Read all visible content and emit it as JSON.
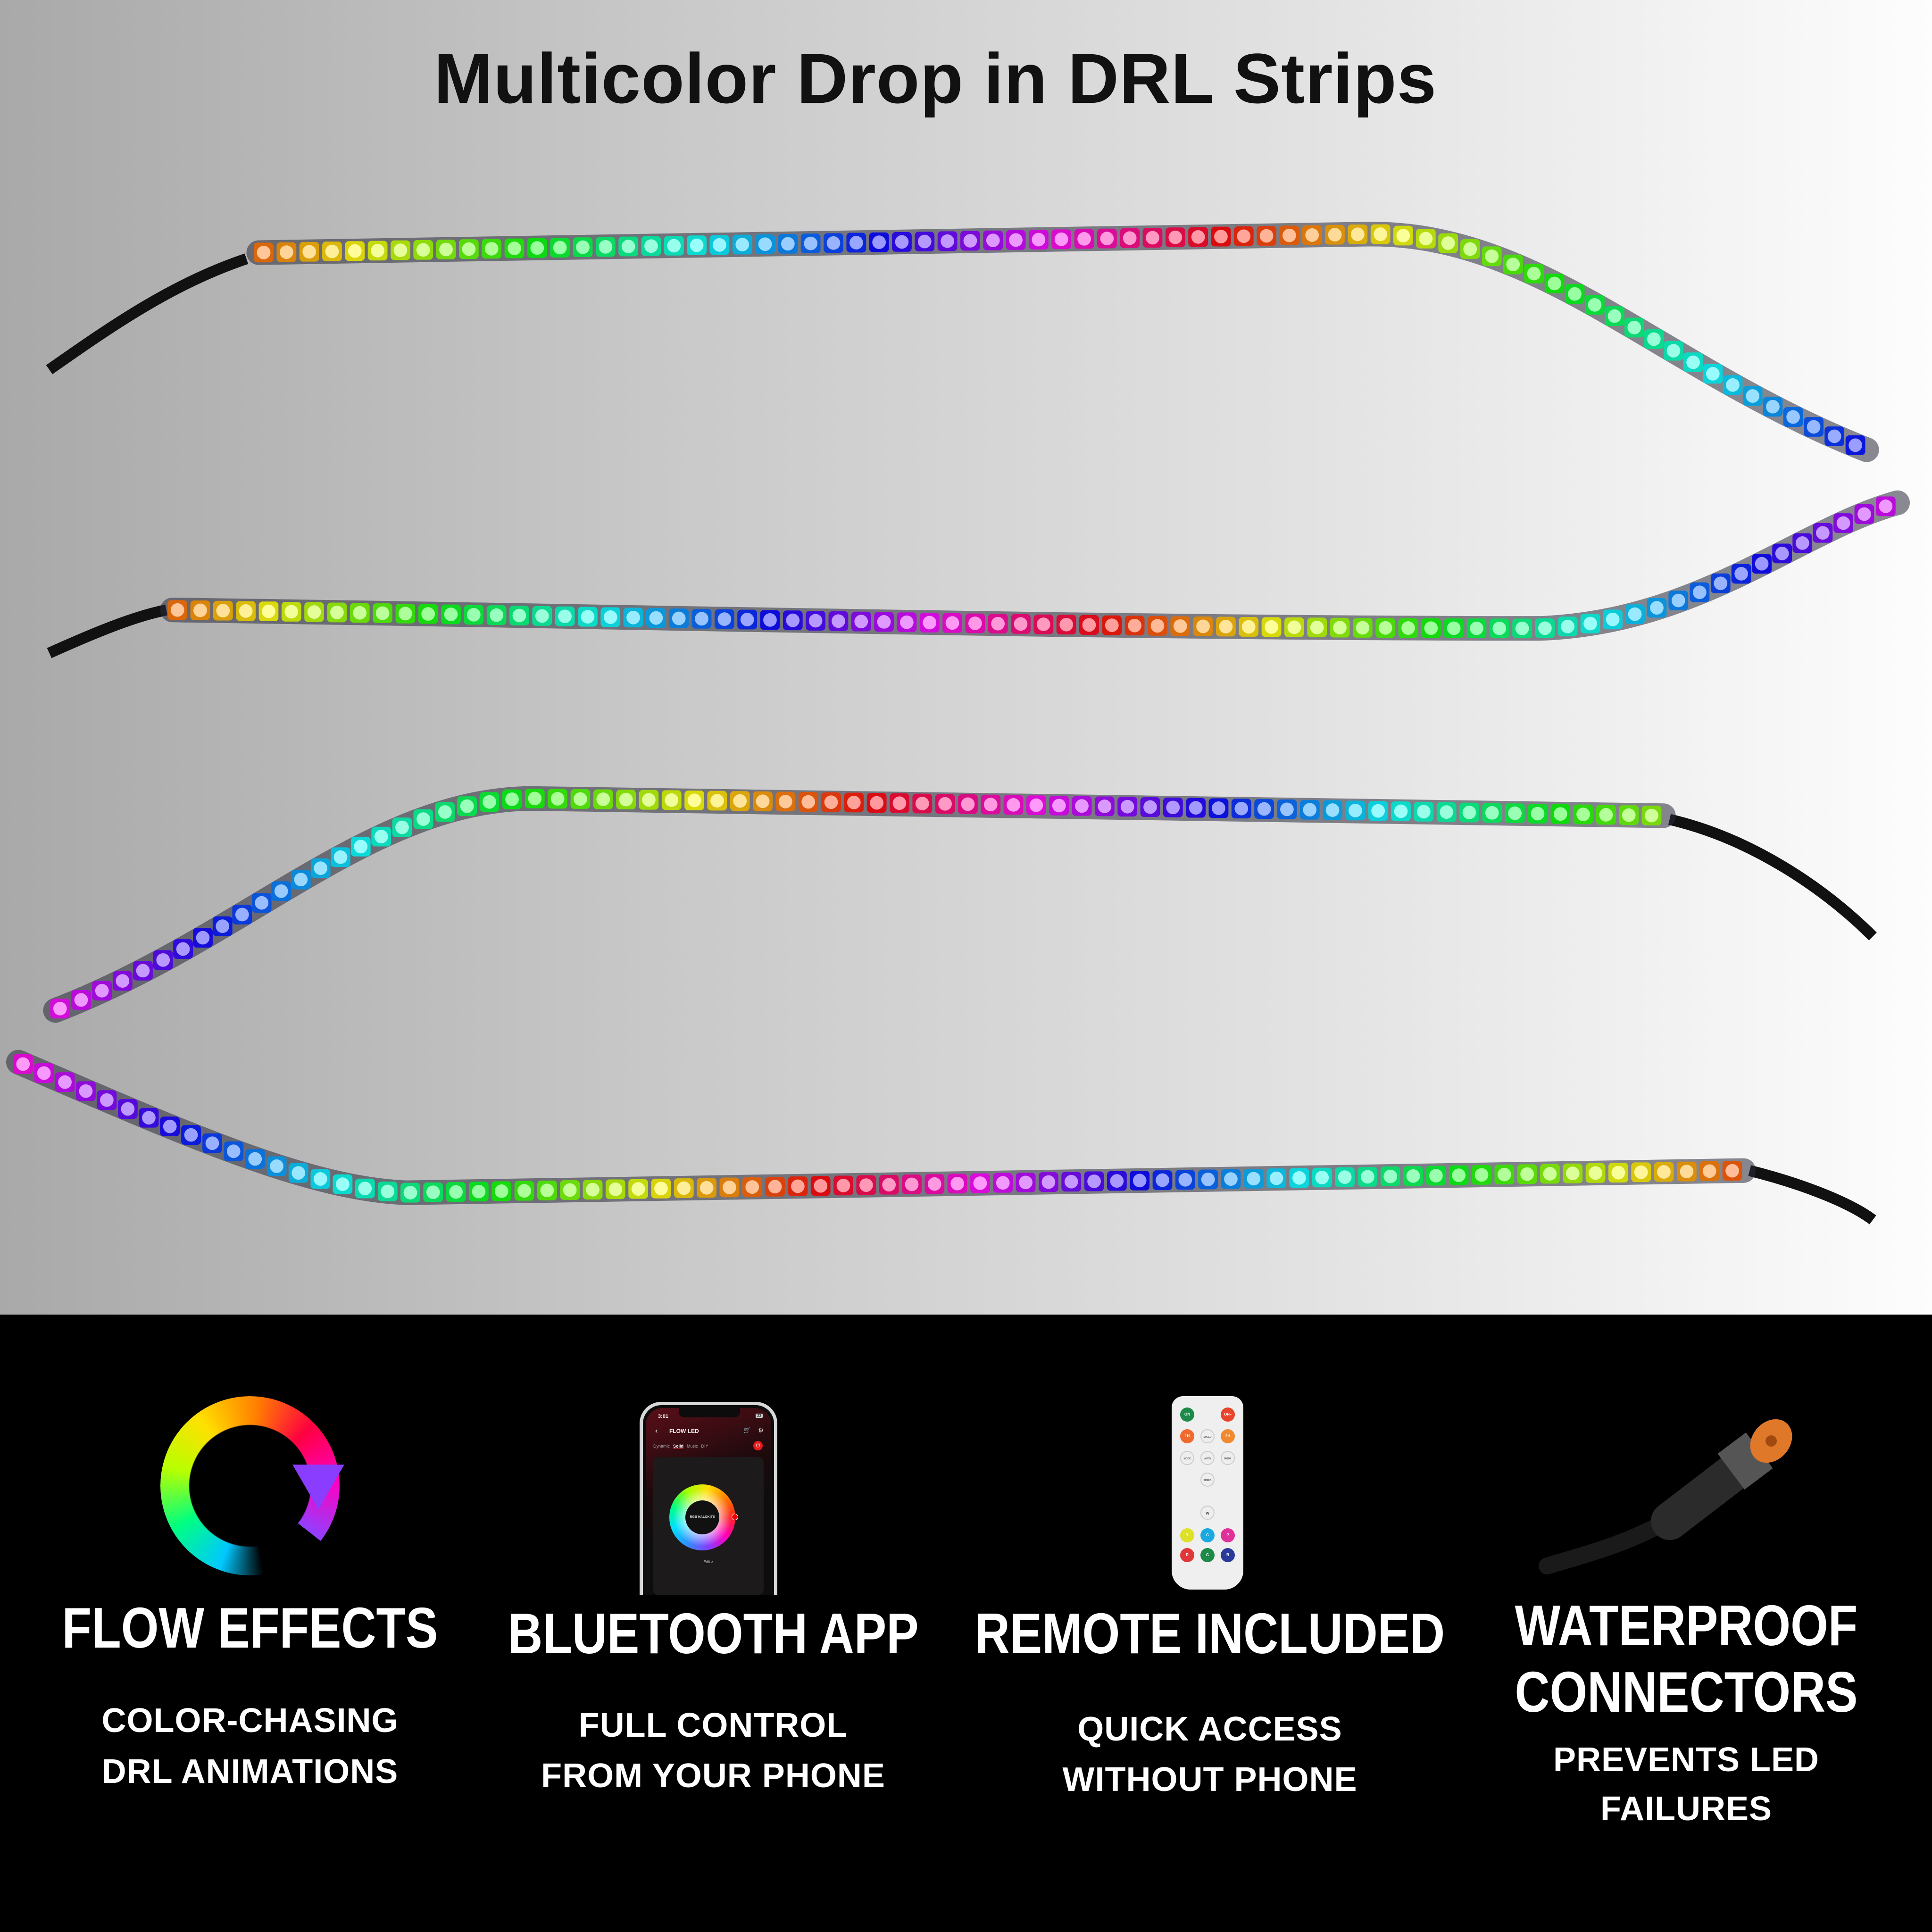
{
  "title": "Multicolor Drop in DRL Strips",
  "features": [
    {
      "title": [
        "FLOW EFFECTS"
      ],
      "subtitle": [
        "COLOR-CHASING",
        "DRL ANIMATIONS"
      ],
      "icon": "color-cycle-ring-icon"
    },
    {
      "title": [
        "BLUETOOTH APP"
      ],
      "subtitle": [
        "FULL CONTROL",
        "FROM YOUR PHONE"
      ],
      "icon": "smartphone-app-icon"
    },
    {
      "title": [
        "REMOTE INCLUDED"
      ],
      "subtitle": [
        "QUICK ACCESS",
        "WITHOUT PHONE"
      ],
      "icon": "remote-control-icon"
    },
    {
      "title": [
        "WATERPROOF",
        "CONNECTORS"
      ],
      "subtitle": [
        "PREVENTS LED",
        "FAILURES"
      ],
      "icon": "waterproof-connector-icon"
    }
  ],
  "phone": {
    "time": "3:01",
    "battery": "23",
    "app_title": "FLOW LED",
    "tabs": [
      "Dynamic",
      "Solid",
      "Music",
      "DIY"
    ],
    "active_tab": "Solid",
    "wheel_logo": "RGB HALOKITS",
    "edit": "Edit >"
  },
  "remote": {
    "buttons": [
      "ON",
      "OFF",
      "1H",
      "2H",
      "SPEED",
      "MODE",
      "AUTO",
      "MODE",
      "SPEED",
      "W",
      "Y",
      "C",
      "P",
      "R",
      "G",
      "B"
    ]
  },
  "colors": {
    "band": "#000000",
    "text_light": "#ffffff",
    "title": "#111111"
  }
}
